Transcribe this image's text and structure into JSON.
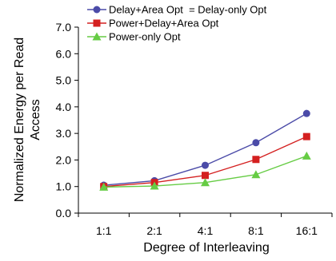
{
  "chart_data": {
    "type": "line",
    "xlabel": "Degree of Interleaving",
    "ylabel_lines": [
      "Normalized Energy per Read",
      "Access"
    ],
    "categories": [
      "1:1",
      "2:1",
      "4:1",
      "8:1",
      "16:1"
    ],
    "ylim": [
      0,
      7
    ],
    "yticks": [
      "0.0",
      "1.0",
      "2.0",
      "3.0",
      "4.0",
      "5.0",
      "6.0",
      "7.0"
    ],
    "grid": false,
    "legend_position": "top",
    "series": [
      {
        "name": "Delay+Area Opt  = Delay-only Opt",
        "values": [
          1.05,
          1.22,
          1.8,
          2.65,
          3.75
        ],
        "color": "#4b4ba8",
        "marker": "circle"
      },
      {
        "name": "Power+Delay+Area Opt",
        "values": [
          1.0,
          1.15,
          1.42,
          2.02,
          2.88
        ],
        "color": "#d42020",
        "marker": "square"
      },
      {
        "name": "Power-only Opt",
        "values": [
          0.98,
          1.02,
          1.15,
          1.45,
          2.15
        ],
        "color": "#66cc44",
        "marker": "triangle"
      }
    ]
  }
}
